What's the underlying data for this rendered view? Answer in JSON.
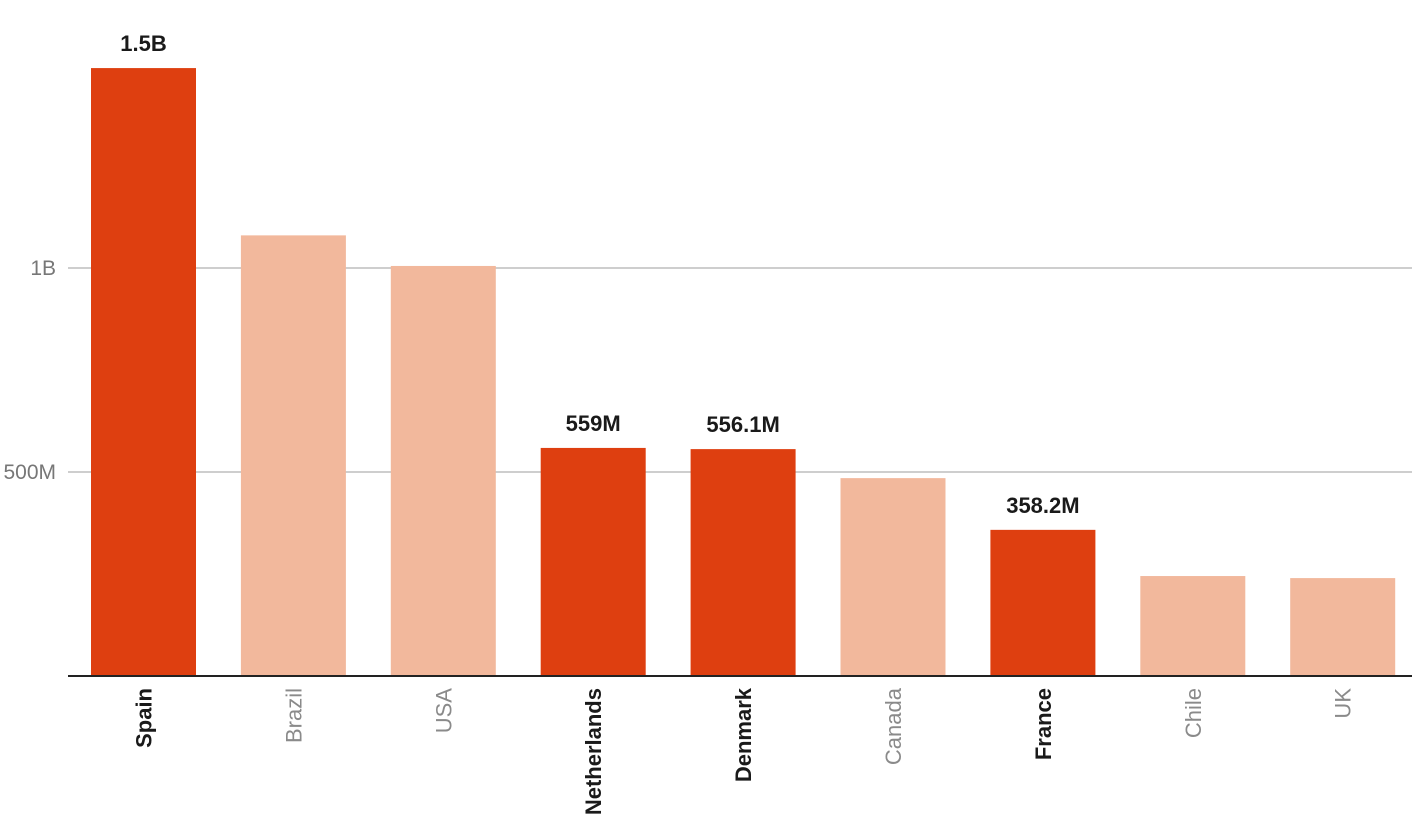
{
  "chart_data": {
    "type": "bar",
    "title": "",
    "xlabel": "",
    "ylabel": "",
    "categories": [
      "Spain",
      "Brazil",
      "USA",
      "Netherlands",
      "Denmark",
      "Canada",
      "France",
      "Chile",
      "UK"
    ],
    "values": [
      1490000000,
      1080000000,
      1005000000,
      559000000,
      556100000,
      485000000,
      358200000,
      245000000,
      240000000
    ],
    "highlighted": [
      true,
      false,
      false,
      true,
      true,
      false,
      true,
      false,
      false
    ],
    "data_labels": [
      "1.5B",
      "",
      "",
      "559M",
      "556.1M",
      "",
      "358.2M",
      "",
      ""
    ],
    "yticks": [
      {
        "value": 500000000,
        "label": "500M"
      },
      {
        "value": 1000000000,
        "label": "1B"
      }
    ],
    "ylim": [
      0,
      1500000000
    ],
    "grid": true,
    "colors": {
      "highlight": "#de3f10",
      "normal": "#f2b89c"
    }
  }
}
